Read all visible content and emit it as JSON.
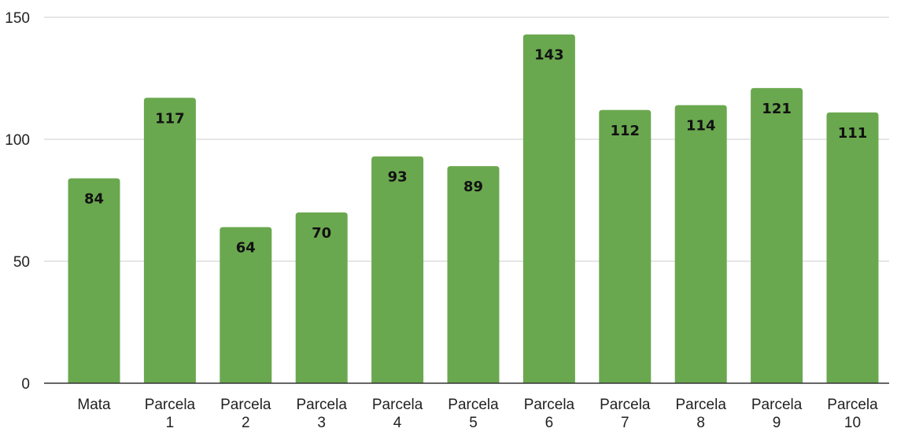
{
  "chart_data": {
    "type": "bar",
    "title": "",
    "xlabel": "",
    "ylabel": "",
    "categories": [
      "Mata",
      "Parcela 1",
      "Parcela 2",
      "Parcela 3",
      "Parcela 4",
      "Parcela 5",
      "Parcela 6",
      "Parcela 7",
      "Parcela 8",
      "Parcela 9",
      "Parcela 10"
    ],
    "values": [
      84,
      117,
      64,
      70,
      93,
      89,
      143,
      112,
      114,
      121,
      111
    ],
    "ylim": [
      0,
      150
    ],
    "yticks": [
      0,
      50,
      100,
      150
    ],
    "grid": true,
    "legend": "none",
    "data_labels": true,
    "bar_color": "#6aa84f"
  }
}
